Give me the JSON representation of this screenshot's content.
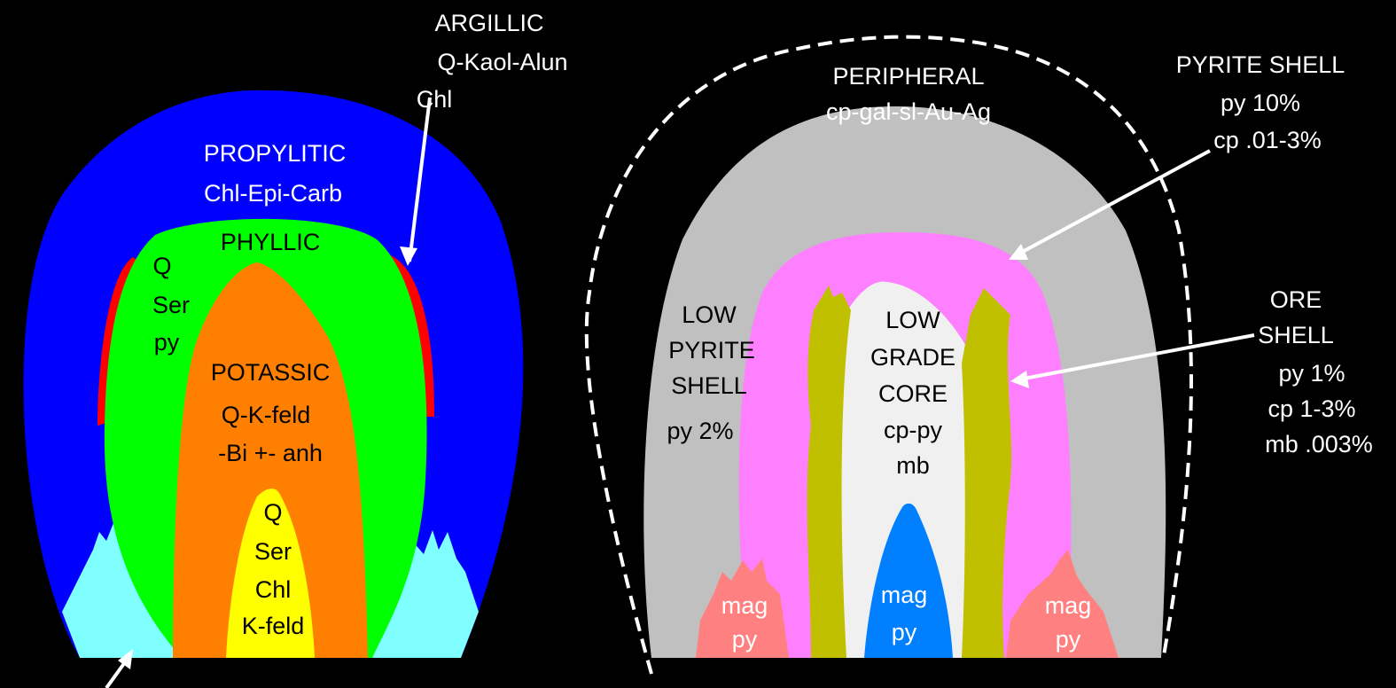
{
  "alteration": {
    "argillic": {
      "title": "ARGILLIC",
      "lines": [
        "Q-Kaol-Alun",
        "Chl"
      ]
    },
    "propylitic": {
      "title": "PROPYLITIC",
      "lines": [
        "Chl-Epi-Carb"
      ]
    },
    "phyllic": {
      "title": "PHYLLIC",
      "lines": [
        "Q",
        "Ser",
        "py"
      ]
    },
    "potassic": {
      "title": "POTASSIC",
      "lines": [
        "Q-K-feld",
        "-Bi +- anh"
      ]
    },
    "core": {
      "lines": [
        "Q",
        "Ser",
        "Chl",
        "K-feld"
      ]
    }
  },
  "mineralization": {
    "peripheral": {
      "title": "PERIPHERAL",
      "lines": [
        "cp-gal-sl-Au-Ag"
      ]
    },
    "pyrite_shell": {
      "title": "PYRITE SHELL",
      "lines": [
        "py 10%",
        "cp .01-3%"
      ]
    },
    "low_pyrite_shell": {
      "lines": [
        "LOW",
        "PYRITE",
        "SHELL",
        "py 2%"
      ]
    },
    "low_grade_core": {
      "lines": [
        "LOW",
        "GRADE",
        "CORE",
        "cp-py",
        "mb"
      ]
    },
    "ore_shell": {
      "lines": [
        "ORE",
        "SHELL",
        "py 1%",
        "cp 1-3%",
        "mb .003%"
      ]
    },
    "magnetite_zones": [
      [
        "mag",
        "py"
      ],
      [
        "mag",
        "py"
      ],
      [
        "mag",
        "py"
      ]
    ]
  }
}
